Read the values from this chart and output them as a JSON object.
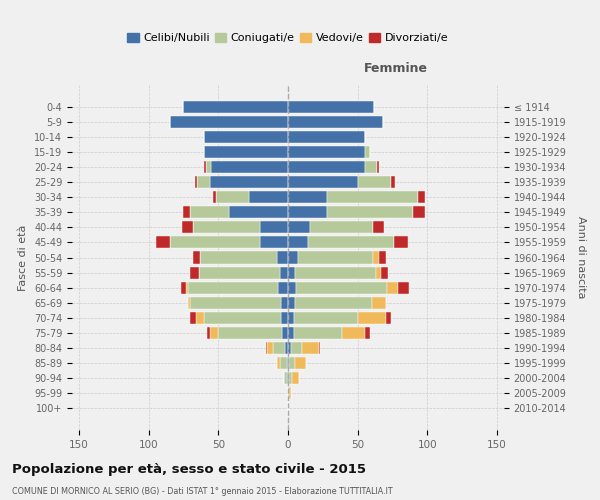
{
  "age_groups": [
    "0-4",
    "5-9",
    "10-14",
    "15-19",
    "20-24",
    "25-29",
    "30-34",
    "35-39",
    "40-44",
    "45-49",
    "50-54",
    "55-59",
    "60-64",
    "65-69",
    "70-74",
    "75-79",
    "80-84",
    "85-89",
    "90-94",
    "95-99",
    "100+"
  ],
  "birth_years": [
    "2010-2014",
    "2005-2009",
    "2000-2004",
    "1995-1999",
    "1990-1994",
    "1985-1989",
    "1980-1984",
    "1975-1979",
    "1970-1974",
    "1965-1969",
    "1960-1964",
    "1955-1959",
    "1950-1954",
    "1945-1949",
    "1940-1944",
    "1935-1939",
    "1930-1934",
    "1925-1929",
    "1920-1924",
    "1915-1919",
    "≤ 1914"
  ],
  "males": {
    "celibi": [
      75,
      85,
      60,
      60,
      55,
      56,
      28,
      42,
      20,
      20,
      8,
      6,
      7,
      5,
      5,
      4,
      2,
      1,
      1,
      0,
      0
    ],
    "coniugati": [
      0,
      0,
      0,
      0,
      4,
      9,
      24,
      28,
      48,
      65,
      55,
      58,
      65,
      65,
      55,
      46,
      9,
      5,
      2,
      0,
      0
    ],
    "vedovi": [
      0,
      0,
      0,
      0,
      0,
      0,
      0,
      0,
      0,
      0,
      0,
      0,
      1,
      2,
      6,
      6,
      4,
      2,
      0,
      0,
      0
    ],
    "divorziati": [
      0,
      0,
      0,
      0,
      1,
      2,
      2,
      5,
      8,
      10,
      5,
      6,
      4,
      0,
      4,
      2,
      1,
      0,
      0,
      0,
      0
    ]
  },
  "females": {
    "nubili": [
      62,
      68,
      55,
      55,
      55,
      50,
      28,
      28,
      16,
      14,
      7,
      5,
      6,
      5,
      4,
      4,
      2,
      1,
      1,
      0,
      0
    ],
    "coniugate": [
      0,
      0,
      0,
      4,
      9,
      24,
      65,
      62,
      45,
      62,
      54,
      58,
      65,
      55,
      46,
      35,
      8,
      4,
      2,
      1,
      0
    ],
    "vedove": [
      0,
      0,
      0,
      0,
      0,
      0,
      0,
      0,
      0,
      0,
      4,
      4,
      8,
      10,
      20,
      16,
      12,
      8,
      5,
      1,
      0
    ],
    "divorziate": [
      0,
      0,
      0,
      0,
      1,
      3,
      5,
      8,
      8,
      10,
      5,
      5,
      8,
      0,
      4,
      4,
      1,
      0,
      0,
      0,
      0
    ]
  },
  "colors": {
    "celibi_nubili": "#4472a8",
    "coniugati": "#b5c99a",
    "vedovi": "#f0b95a",
    "divorziati": "#c0292a"
  },
  "title": "Popolazione per età, sesso e stato civile - 2015",
  "subtitle": "COMUNE DI MORNICO AL SERIO (BG) - Dati ISTAT 1° gennaio 2015 - Elaborazione TUTTITALIA.IT",
  "ylabel": "Fasce di età",
  "ylabel_right": "Anni di nascita",
  "xlim": 155,
  "background_color": "#f0f0f0",
  "bar_height": 0.8,
  "legend_labels": [
    "Celibi/Nubili",
    "Coniugati/e",
    "Vedovi/e",
    "Divorziati/e"
  ]
}
